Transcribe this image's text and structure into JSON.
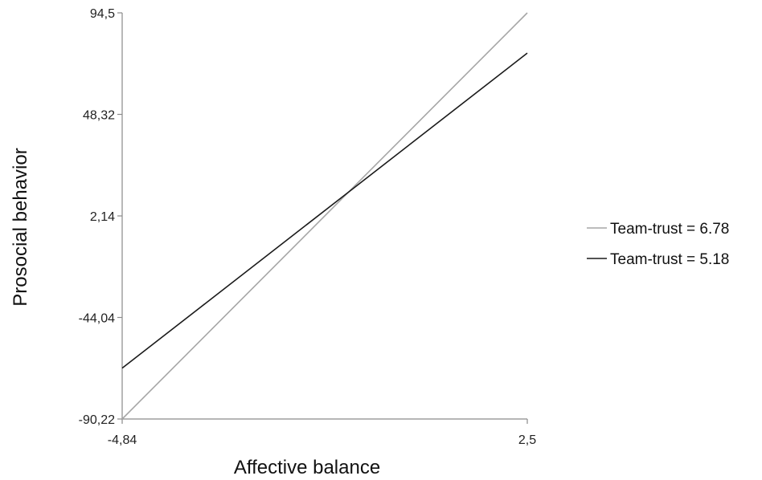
{
  "chart_data": {
    "type": "line",
    "title": "",
    "xlabel": "Affective balance",
    "ylabel": "Prosocial behavior",
    "xlim": [
      -4.84,
      2.5
    ],
    "ylim": [
      -90.22,
      94.5
    ],
    "x_tick_labels": [
      "-4,84",
      "2,5"
    ],
    "y_tick_labels": [
      "-90,22",
      "-44,04",
      "2,14",
      "48,32",
      "94,5"
    ],
    "y_tick_values": [
      -90.22,
      -44.04,
      2.14,
      48.32,
      94.5
    ],
    "grid": false,
    "legend_position": "right",
    "series": [
      {
        "name": "Team-trust = 6.78",
        "color": "#a6a6a6",
        "x": [
          -4.84,
          2.5
        ],
        "y": [
          -90.22,
          94.5
        ]
      },
      {
        "name": "Team-trust = 5.18",
        "color": "#1a1a1a",
        "x": [
          -4.84,
          2.5
        ],
        "y": [
          -67.1,
          76.2
        ]
      }
    ]
  }
}
